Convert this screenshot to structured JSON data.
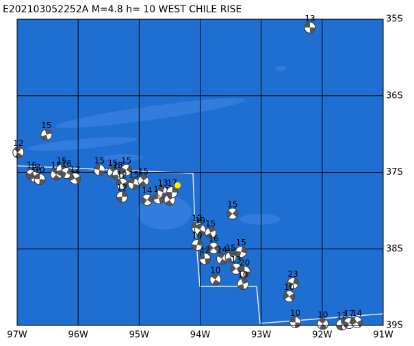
{
  "chart_data": {
    "type": "map",
    "title": "E202103052252A  M=4.8  h= 10 WEST CHILE RISE",
    "xlim": [
      -97,
      -91
    ],
    "ylim": [
      -39,
      -35
    ],
    "xticks": [
      {
        "value": -97,
        "label": "97W"
      },
      {
        "value": -96,
        "label": "96W"
      },
      {
        "value": -95,
        "label": "95W"
      },
      {
        "value": -94,
        "label": "94W"
      },
      {
        "value": -93,
        "label": "93W"
      },
      {
        "value": -92,
        "label": "92W"
      },
      {
        "value": -91,
        "label": "91W"
      }
    ],
    "yticks": [
      {
        "value": -35,
        "label": "35S"
      },
      {
        "value": -36,
        "label": "36S"
      },
      {
        "value": -37,
        "label": "37S"
      },
      {
        "value": -38,
        "label": "38S"
      },
      {
        "value": -39,
        "label": "39S"
      }
    ],
    "grid": true,
    "epicenter": {
      "lon": -94.37,
      "lat": -37.17,
      "color": "#ffee00"
    },
    "events": {
      "lon": [
        -92.2,
        -96.98,
        -96.52,
        -96.76,
        -96.7,
        -96.63,
        -96.36,
        -96.27,
        -96.19,
        -96.05,
        -95.65,
        -95.43,
        -95.35,
        -95.21,
        -95.28,
        -95.09,
        -94.93,
        -95.28,
        -94.87,
        -94.68,
        -94.61,
        -94.5,
        -94.46,
        -93.47,
        -94.05,
        -94.0,
        -93.83,
        -94.05,
        -93.78,
        -93.92,
        -93.64,
        -93.5,
        -93.33,
        -93.41,
        -93.27,
        -93.75,
        -93.3,
        -92.48,
        -92.54,
        -92.44,
        -91.99,
        -91.68,
        -91.56,
        -91.43
      ],
      "lat": [
        -35.11,
        -36.74,
        -36.51,
        -37.03,
        -37.06,
        -37.09,
        -37.03,
        -36.97,
        -37.01,
        -37.08,
        -36.97,
        -37.0,
        -37.03,
        -36.97,
        -37.15,
        -37.15,
        -37.11,
        -37.32,
        -37.36,
        -37.34,
        -37.26,
        -37.36,
        -37.26,
        -37.54,
        -37.72,
        -37.75,
        -37.79,
        -37.95,
        -37.99,
        -38.13,
        -38.13,
        -38.11,
        -38.04,
        -38.26,
        -38.3,
        -38.4,
        -38.46,
        -38.45,
        -38.62,
        -38.96,
        -38.98,
        -38.99,
        -38.97,
        -38.96
      ],
      "depth": [
        13,
        12,
        15,
        15,
        13,
        10,
        15,
        15,
        16,
        12,
        15,
        15,
        18,
        15,
        12,
        15,
        15,
        12,
        14,
        10,
        13,
        14,
        17,
        15,
        12,
        19,
        15,
        10,
        16,
        12,
        14,
        15,
        15,
        13,
        20,
        10,
        10,
        23,
        10,
        10,
        10,
        12,
        17,
        14
      ]
    }
  }
}
